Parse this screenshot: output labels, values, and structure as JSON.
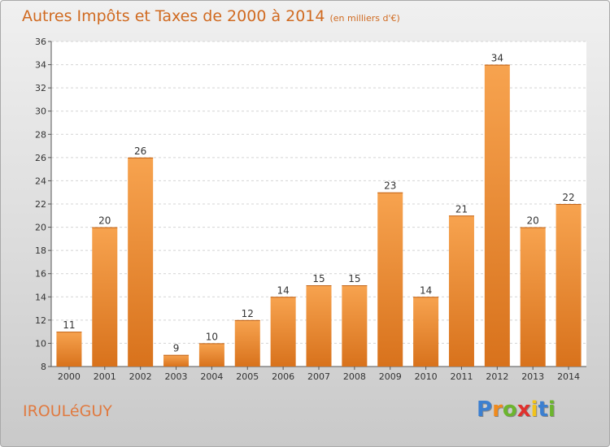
{
  "title": {
    "main": "Autres Impôts et Taxes de 2000 à 2014",
    "unit": "(en milliers d'€)"
  },
  "commune": "IROULéGUY",
  "logo": {
    "text": "Proxiti",
    "letters": [
      {
        "ch": "P",
        "color": "#3b7fd0"
      },
      {
        "ch": "r",
        "color": "#f08a1c"
      },
      {
        "ch": "o",
        "color": "#6cb52e"
      },
      {
        "ch": "x",
        "color": "#e0312e"
      },
      {
        "ch": "i",
        "color": "#f2c31a"
      },
      {
        "ch": "t",
        "color": "#3b7fd0"
      },
      {
        "ch": "i",
        "color": "#6cb52e"
      }
    ]
  },
  "chart_data": {
    "type": "bar",
    "categories": [
      "2000",
      "2001",
      "2002",
      "2003",
      "2004",
      "2005",
      "2006",
      "2007",
      "2008",
      "2009",
      "2010",
      "2011",
      "2012",
      "2013",
      "2014"
    ],
    "values": [
      11,
      20,
      26,
      9,
      10,
      12,
      14,
      15,
      15,
      23,
      14,
      21,
      34,
      20,
      22
    ],
    "ylim": [
      8,
      36
    ],
    "yticks": [
      8,
      10,
      12,
      14,
      16,
      18,
      20,
      22,
      24,
      26,
      28,
      30,
      32,
      34,
      36
    ],
    "grid": true,
    "bar_color_top": "#f7a34f",
    "bar_color_bottom": "#d8721c"
  }
}
